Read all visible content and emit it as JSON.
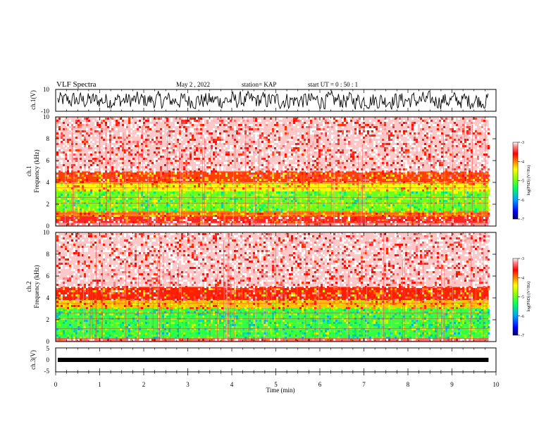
{
  "header": {
    "title": "VLF Spectra",
    "date": "May 2  , 2022",
    "station": "station= KAP",
    "start": "start  UT  =   0  : 50 : 1"
  },
  "colors": {
    "spectrum_low": "#1e3cff",
    "spectrum_green": "#2cff2c",
    "spectrum_yellow": "#ffff00",
    "spectrum_red": "#ff0000",
    "spectrum_pink": "#ffe0e0",
    "waveform": "#000000"
  },
  "chart_data": [
    {
      "type": "line",
      "name": "ch1-waveform",
      "ylabel": "ch.1(V)",
      "ylim": [
        -10,
        10
      ],
      "y_ticks": [
        "10",
        "-10"
      ],
      "xlim": [
        0,
        10
      ],
      "x_range_data": [
        0,
        9.83
      ],
      "noise_amplitude": 5
    },
    {
      "type": "heatmap",
      "name": "ch1-spectrogram",
      "ylabel": "ch.1\nFrequency  (kHz)",
      "ylabel_line1": "ch.1",
      "ylabel_line2": "Frequency  (kHz)",
      "ylim": [
        0,
        10
      ],
      "y_ticks": [
        "0",
        "2",
        "4",
        "6",
        "8",
        "10"
      ],
      "xlim": [
        0,
        10
      ],
      "x_range_data": [
        0,
        9.83
      ],
      "bands_khz": [
        {
          "from": 0.0,
          "to": 0.3,
          "level": -3.2
        },
        {
          "from": 0.3,
          "to": 0.9,
          "level": -3.5
        },
        {
          "from": 0.9,
          "to": 1.4,
          "level": -4.0
        },
        {
          "from": 1.4,
          "to": 3.2,
          "level": -5.0
        },
        {
          "from": 3.2,
          "to": 4.0,
          "level": -4.4
        },
        {
          "from": 4.0,
          "to": 5.0,
          "level": -3.8
        },
        {
          "from": 5.0,
          "to": 10.0,
          "level": -3.1
        }
      ],
      "colorbar": {
        "label": "log(PSD) (V²/Hz)",
        "range": [
          -7,
          -3
        ],
        "ticks": [
          "-3",
          "-4",
          "-5",
          "-6",
          "-7"
        ]
      }
    },
    {
      "type": "heatmap",
      "name": "ch2-spectrogram",
      "ylabel": "ch.2\nFrequency  (kHz)",
      "ylabel_line1": "ch.2",
      "ylabel_line2": "Frequency  (kHz)",
      "ylim": [
        0,
        10
      ],
      "y_ticks": [
        "0",
        "2",
        "4",
        "6",
        "8",
        "10"
      ],
      "xlim": [
        0,
        10
      ],
      "x_range_data": [
        0,
        9.83
      ],
      "bands_khz": [
        {
          "from": 0.0,
          "to": 0.3,
          "level": -3.3
        },
        {
          "from": 0.3,
          "to": 3.1,
          "level": -5.2
        },
        {
          "from": 3.1,
          "to": 3.8,
          "level": -4.2
        },
        {
          "from": 3.8,
          "to": 5.0,
          "level": -3.7
        },
        {
          "from": 5.0,
          "to": 10.0,
          "level": -3.1
        }
      ],
      "colorbar": {
        "label": "log(PSD) (V²/Hz)",
        "range": [
          -7,
          -3
        ],
        "ticks": [
          "-3",
          "-4",
          "-5",
          "-6",
          "-7"
        ]
      }
    },
    {
      "type": "line",
      "name": "ch3-waveform",
      "ylabel": "ch.3(V)",
      "ylim": [
        -5,
        5
      ],
      "y_ticks": [
        "5",
        "0",
        "-5"
      ],
      "xlim": [
        0,
        10
      ],
      "x_range_data": [
        0,
        9.83
      ],
      "constant_value": 0
    }
  ],
  "x_axis": {
    "label": "Time  (min)",
    "ticks": [
      "0",
      "1",
      "2",
      "3",
      "4",
      "5",
      "6",
      "7",
      "8",
      "9",
      "10"
    ]
  }
}
